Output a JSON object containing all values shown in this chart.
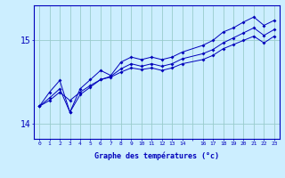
{
  "xlabel": "Graphe des températures (°c)",
  "ylabel": "",
  "background_color": "#cceeff",
  "line_color": "#0000bb",
  "grid_color": "#99cccc",
  "hours": [
    0,
    1,
    2,
    3,
    4,
    5,
    6,
    7,
    8,
    9,
    10,
    11,
    12,
    13,
    14,
    16,
    17,
    18,
    19,
    20,
    21,
    22,
    23
  ],
  "line1": [
    14.21,
    14.28,
    14.38,
    14.28,
    14.38,
    14.46,
    14.53,
    14.56,
    14.62,
    14.67,
    14.65,
    14.67,
    14.64,
    14.67,
    14.72,
    14.77,
    14.82,
    14.9,
    14.95,
    15.0,
    15.05,
    14.97,
    15.05
  ],
  "line2": [
    14.21,
    14.31,
    14.42,
    14.14,
    14.35,
    14.44,
    14.53,
    14.57,
    14.66,
    14.72,
    14.69,
    14.72,
    14.69,
    14.72,
    14.78,
    14.84,
    14.89,
    14.97,
    15.03,
    15.09,
    15.15,
    15.06,
    15.13
  ],
  "line3": [
    14.21,
    14.38,
    14.52,
    14.14,
    14.42,
    14.53,
    14.64,
    14.58,
    14.74,
    14.8,
    14.77,
    14.8,
    14.77,
    14.8,
    14.86,
    14.94,
    15.0,
    15.1,
    15.15,
    15.22,
    15.28,
    15.18,
    15.24
  ],
  "yticks": [
    14,
    15
  ],
  "xtick_labels": [
    "0",
    "1",
    "2",
    "3",
    "4",
    "5",
    "6",
    "7",
    "8",
    "9",
    "10",
    "11",
    "12",
    "13",
    "14",
    "",
    "16",
    "17",
    "18",
    "19",
    "20",
    "21",
    "22",
    "23"
  ],
  "xtick_positions": [
    0,
    1,
    2,
    3,
    4,
    5,
    6,
    7,
    8,
    9,
    10,
    11,
    12,
    13,
    14,
    15,
    16,
    17,
    18,
    19,
    20,
    21,
    22,
    23
  ],
  "xlim": [
    -0.5,
    23.5
  ],
  "ylim": [
    13.82,
    15.42
  ]
}
